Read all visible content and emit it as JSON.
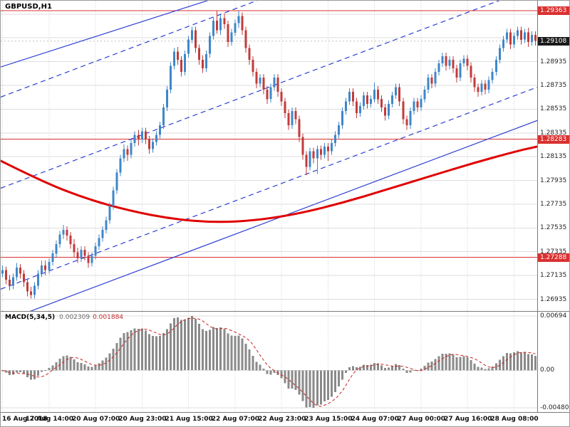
{
  "window": {
    "title": "GBPUSD,H1"
  },
  "colors": {
    "bull": "#3f87c9",
    "bear": "#c23b3b",
    "ma": "#e00000",
    "trend": "#2d3fd3",
    "grid_h": "#dedede",
    "grid_v": "#cfcfcf",
    "hline": "#d93030",
    "badge_current_bg": "#1a1a1a",
    "macd_bar": "#8a8a8a",
    "macd_signal": "#cc2020"
  },
  "chart_data": {
    "type": "candlestick",
    "symbol": "GBPUSD",
    "timeframe": "H1",
    "title": "GBPUSD,H1",
    "price_range": {
      "min": 1.2686,
      "max": 1.294
    },
    "price_grid": {
      "start": 1.26935,
      "step": 0.002,
      "count": 13
    },
    "price_axis_labels": [
      "1.28935",
      "1.28735",
      "1.28535",
      "1.28335",
      "1.28135",
      "1.27935",
      "1.27735",
      "1.27535",
      "1.27335",
      "1.27135",
      "1.26935"
    ],
    "x_labels": [
      "16 Aug 2018",
      "17 Aug 14:00",
      "20 Aug 07:00",
      "20 Aug 23:00",
      "21 Aug 15:00",
      "22 Aug 07:00",
      "22 Aug 23:00",
      "23 Aug 15:00",
      "24 Aug 07:00",
      "27 Aug 00:00",
      "27 Aug 16:00",
      "28 Aug 08:00"
    ],
    "tick_indices": [
      0,
      13,
      26,
      39,
      52,
      65,
      78,
      91,
      104,
      117,
      130,
      143
    ],
    "hlines": [
      {
        "price": 1.29363,
        "label": "1.29363"
      },
      {
        "price": 1.28283,
        "label": "1.28283"
      },
      {
        "price": 1.27288,
        "label": "1.27288"
      }
    ],
    "current_price": {
      "price": 1.29108,
      "label": "1.29108"
    },
    "trendlines": [
      {
        "style": "solid",
        "p1": [
          0,
          1.2889
        ],
        "p2": [
          1,
          1.3034
        ]
      },
      {
        "style": "solid",
        "p1": [
          0,
          1.2674
        ],
        "p2": [
          1,
          1.2844
        ]
      },
      {
        "style": "dashed",
        "p1": [
          0,
          1.28637
        ],
        "p2": [
          1,
          1.30337
        ]
      },
      {
        "style": "dashed",
        "p1": [
          0,
          1.2787
        ],
        "p2": [
          1,
          1.2957
        ]
      },
      {
        "style": "dashed",
        "p1": [
          0,
          1.2702
        ],
        "p2": [
          1,
          1.2872
        ]
      }
    ],
    "ma": {
      "points": [
        [
          0,
          1.281
        ],
        [
          0.08,
          1.2792
        ],
        [
          0.16,
          1.2778
        ],
        [
          0.24,
          1.2768
        ],
        [
          0.32,
          1.2761
        ],
        [
          0.4,
          1.2758
        ],
        [
          0.48,
          1.276
        ],
        [
          0.56,
          1.2766
        ],
        [
          0.64,
          1.2775
        ],
        [
          0.72,
          1.2786
        ],
        [
          0.8,
          1.2797
        ],
        [
          0.88,
          1.2808
        ],
        [
          0.96,
          1.2818
        ],
        [
          1,
          1.2822
        ]
      ]
    },
    "macd": {
      "name": "MACD(5,34,5)",
      "value_main": "0.002309",
      "value_signal": "0.001884",
      "params": [
        5,
        34,
        5
      ],
      "axis_labels": [
        "0.00694",
        "0.00",
        "-0.00480"
      ],
      "axis_values": [
        0.00694,
        0,
        -0.0048
      ],
      "range": {
        "max": 0.00749,
        "min": -0.00535
      }
    },
    "candles": [
      [
        1.2715,
        1.2722,
        1.2712,
        1.2718
      ],
      [
        1.2718,
        1.2721,
        1.2706,
        1.271
      ],
      [
        1.271,
        1.2714,
        1.2701,
        1.2705
      ],
      [
        1.2705,
        1.2715,
        1.2702,
        1.2712
      ],
      [
        1.2712,
        1.2724,
        1.2709,
        1.272
      ],
      [
        1.272,
        1.2723,
        1.2711,
        1.2715
      ],
      [
        1.2715,
        1.2718,
        1.2704,
        1.2708
      ],
      [
        1.2708,
        1.2711,
        1.2696,
        1.27
      ],
      [
        1.27,
        1.2704,
        1.2694,
        1.2697
      ],
      [
        1.2697,
        1.2708,
        1.2694,
        1.2705
      ],
      [
        1.2705,
        1.2718,
        1.2702,
        1.2715
      ],
      [
        1.2715,
        1.2726,
        1.2712,
        1.2722
      ],
      [
        1.2722,
        1.2726,
        1.2714,
        1.2718
      ],
      [
        1.2718,
        1.2728,
        1.2715,
        1.2725
      ],
      [
        1.2725,
        1.2735,
        1.2722,
        1.2732
      ],
      [
        1.2732,
        1.2743,
        1.2729,
        1.274
      ],
      [
        1.274,
        1.2751,
        1.2737,
        1.2748
      ],
      [
        1.2748,
        1.2756,
        1.2744,
        1.2752
      ],
      [
        1.2752,
        1.2755,
        1.2743,
        1.2747
      ],
      [
        1.2747,
        1.275,
        1.2736,
        1.274
      ],
      [
        1.274,
        1.2744,
        1.2729,
        1.2733
      ],
      [
        1.2733,
        1.2737,
        1.2724,
        1.2728
      ],
      [
        1.2728,
        1.2738,
        1.2725,
        1.2735
      ],
      [
        1.2735,
        1.2738,
        1.2726,
        1.273
      ],
      [
        1.273,
        1.2733,
        1.272,
        1.2724
      ],
      [
        1.2724,
        1.2733,
        1.2721,
        1.273
      ],
      [
        1.273,
        1.2741,
        1.2727,
        1.2738
      ],
      [
        1.2738,
        1.2748,
        1.2735,
        1.2745
      ],
      [
        1.2745,
        1.2755,
        1.2742,
        1.2752
      ],
      [
        1.2752,
        1.2763,
        1.2749,
        1.276
      ],
      [
        1.276,
        1.2775,
        1.2757,
        1.2772
      ],
      [
        1.2772,
        1.2788,
        1.2769,
        1.2785
      ],
      [
        1.2785,
        1.2803,
        1.2782,
        1.28
      ],
      [
        1.28,
        1.2815,
        1.2797,
        1.2812
      ],
      [
        1.2812,
        1.2824,
        1.2809,
        1.282
      ],
      [
        1.282,
        1.2823,
        1.281,
        1.2815
      ],
      [
        1.2815,
        1.2828,
        1.2812,
        1.2825
      ],
      [
        1.2825,
        1.2835,
        1.2822,
        1.2832
      ],
      [
        1.2832,
        1.2836,
        1.2823,
        1.2828
      ],
      [
        1.2828,
        1.2838,
        1.2825,
        1.2835
      ],
      [
        1.2835,
        1.2838,
        1.2824,
        1.2828
      ],
      [
        1.2828,
        1.2831,
        1.2816,
        1.282
      ],
      [
        1.282,
        1.2829,
        1.2817,
        1.2826
      ],
      [
        1.2826,
        1.2835,
        1.2823,
        1.2832
      ],
      [
        1.2832,
        1.2843,
        1.2829,
        1.284
      ],
      [
        1.284,
        1.2858,
        1.2837,
        1.2855
      ],
      [
        1.2855,
        1.2873,
        1.2852,
        1.287
      ],
      [
        1.287,
        1.2893,
        1.2867,
        1.289
      ],
      [
        1.289,
        1.2905,
        1.2887,
        1.2902
      ],
      [
        1.2902,
        1.2906,
        1.2891,
        1.2895
      ],
      [
        1.2895,
        1.2898,
        1.2881,
        1.2885
      ],
      [
        1.2885,
        1.2903,
        1.2882,
        1.29
      ],
      [
        1.29,
        1.2915,
        1.2897,
        1.2912
      ],
      [
        1.2912,
        1.2923,
        1.2909,
        1.292
      ],
      [
        1.292,
        1.2923,
        1.2901,
        1.2905
      ],
      [
        1.2905,
        1.2908,
        1.2891,
        1.2895
      ],
      [
        1.2895,
        1.2899,
        1.2884,
        1.2888
      ],
      [
        1.2888,
        1.2903,
        1.2885,
        1.29
      ],
      [
        1.29,
        1.2918,
        1.2897,
        1.2915
      ],
      [
        1.2915,
        1.2931,
        1.2912,
        1.2928
      ],
      [
        1.2928,
        1.2936,
        1.2917,
        1.292
      ],
      [
        1.292,
        1.2933,
        1.2916,
        1.293
      ],
      [
        1.293,
        1.2934,
        1.2921,
        1.2925
      ],
      [
        1.2925,
        1.2928,
        1.2906,
        1.291
      ],
      [
        1.291,
        1.2921,
        1.2907,
        1.2918
      ],
      [
        1.2918,
        1.2929,
        1.2915,
        1.2926
      ],
      [
        1.2926,
        1.2936,
        1.2922,
        1.2932
      ],
      [
        1.2932,
        1.2935,
        1.2916,
        1.292
      ],
      [
        1.292,
        1.2923,
        1.2901,
        1.2905
      ],
      [
        1.2905,
        1.2908,
        1.2891,
        1.2895
      ],
      [
        1.2895,
        1.2898,
        1.2881,
        1.2885
      ],
      [
        1.2885,
        1.2888,
        1.2871,
        1.2875
      ],
      [
        1.2875,
        1.2883,
        1.2872,
        1.288
      ],
      [
        1.288,
        1.2883,
        1.2866,
        1.287
      ],
      [
        1.287,
        1.2873,
        1.2858,
        1.2862
      ],
      [
        1.2862,
        1.2875,
        1.2859,
        1.2872
      ],
      [
        1.2872,
        1.2883,
        1.2869,
        1.288
      ],
      [
        1.288,
        1.2883,
        1.2864,
        1.2868
      ],
      [
        1.2868,
        1.2871,
        1.2856,
        1.286
      ],
      [
        1.286,
        1.2863,
        1.2846,
        1.285
      ],
      [
        1.285,
        1.2853,
        1.2836,
        1.284
      ],
      [
        1.284,
        1.2855,
        1.2837,
        1.2852
      ],
      [
        1.2852,
        1.2855,
        1.2841,
        1.2845
      ],
      [
        1.2845,
        1.2848,
        1.2826,
        1.283
      ],
      [
        1.283,
        1.2833,
        1.2811,
        1.2815
      ],
      [
        1.2815,
        1.2818,
        1.2798,
        1.2805
      ],
      [
        1.2805,
        1.2821,
        1.2802,
        1.2818
      ],
      [
        1.2818,
        1.2821,
        1.2808,
        1.2812
      ],
      [
        1.2812,
        1.2823,
        1.2799,
        1.282
      ],
      [
        1.282,
        1.2823,
        1.2811,
        1.2815
      ],
      [
        1.2815,
        1.2825,
        1.2812,
        1.2822
      ],
      [
        1.2822,
        1.2825,
        1.281,
        1.2818
      ],
      [
        1.2818,
        1.2828,
        1.2815,
        1.2825
      ],
      [
        1.2825,
        1.2835,
        1.2822,
        1.2832
      ],
      [
        1.2832,
        1.2843,
        1.2829,
        1.284
      ],
      [
        1.284,
        1.2855,
        1.2837,
        1.2852
      ],
      [
        1.2852,
        1.2863,
        1.2849,
        1.286
      ],
      [
        1.286,
        1.2871,
        1.2857,
        1.2868
      ],
      [
        1.2868,
        1.2871,
        1.2856,
        1.286
      ],
      [
        1.286,
        1.2863,
        1.2846,
        1.285
      ],
      [
        1.285,
        1.2859,
        1.2847,
        1.2856
      ],
      [
        1.2856,
        1.2868,
        1.2853,
        1.2865
      ],
      [
        1.2865,
        1.2868,
        1.2854,
        1.2858
      ],
      [
        1.2858,
        1.2865,
        1.2855,
        1.2862
      ],
      [
        1.2862,
        1.2876,
        1.2859,
        1.287
      ],
      [
        1.287,
        1.2873,
        1.2858,
        1.2862
      ],
      [
        1.2862,
        1.2865,
        1.2851,
        1.2855
      ],
      [
        1.2855,
        1.2858,
        1.2844,
        1.2848
      ],
      [
        1.2848,
        1.2861,
        1.2845,
        1.2858
      ],
      [
        1.2858,
        1.2868,
        1.2855,
        1.2865
      ],
      [
        1.2865,
        1.2875,
        1.2862,
        1.2872
      ],
      [
        1.2872,
        1.2875,
        1.2856,
        1.286
      ],
      [
        1.286,
        1.2863,
        1.2841,
        1.2845
      ],
      [
        1.2845,
        1.2848,
        1.2836,
        1.284
      ],
      [
        1.284,
        1.2855,
        1.2837,
        1.2852
      ],
      [
        1.2852,
        1.2863,
        1.2849,
        1.286
      ],
      [
        1.286,
        1.2863,
        1.2851,
        1.2855
      ],
      [
        1.2855,
        1.2865,
        1.2852,
        1.2862
      ],
      [
        1.2862,
        1.2873,
        1.2859,
        1.287
      ],
      [
        1.287,
        1.2883,
        1.2867,
        1.288
      ],
      [
        1.288,
        1.2883,
        1.2871,
        1.2875
      ],
      [
        1.2875,
        1.2888,
        1.2872,
        1.2885
      ],
      [
        1.2885,
        1.2895,
        1.2882,
        1.2892
      ],
      [
        1.2892,
        1.2901,
        1.2889,
        1.2898
      ],
      [
        1.2898,
        1.2901,
        1.2886,
        1.289
      ],
      [
        1.289,
        1.2898,
        1.2887,
        1.2895
      ],
      [
        1.2895,
        1.2898,
        1.2884,
        1.2888
      ],
      [
        1.2888,
        1.2891,
        1.2876,
        1.288
      ],
      [
        1.288,
        1.2895,
        1.2877,
        1.2892
      ],
      [
        1.2892,
        1.2899,
        1.2889,
        1.2896
      ],
      [
        1.2896,
        1.2899,
        1.2886,
        1.289
      ],
      [
        1.289,
        1.2893,
        1.2876,
        1.288
      ],
      [
        1.288,
        1.2883,
        1.2868,
        1.2872
      ],
      [
        1.2872,
        1.2875,
        1.2864,
        1.2868
      ],
      [
        1.2868,
        1.2878,
        1.2865,
        1.2875
      ],
      [
        1.2875,
        1.2878,
        1.2866,
        1.287
      ],
      [
        1.287,
        1.2881,
        1.2867,
        1.2878
      ],
      [
        1.2878,
        1.2888,
        1.2875,
        1.2885
      ],
      [
        1.2885,
        1.2898,
        1.2882,
        1.2895
      ],
      [
        1.2895,
        1.2908,
        1.2892,
        1.2905
      ],
      [
        1.2905,
        1.2915,
        1.2902,
        1.2912
      ],
      [
        1.2912,
        1.2921,
        1.2909,
        1.2918
      ],
      [
        1.2918,
        1.2921,
        1.2904,
        1.2908
      ],
      [
        1.2908,
        1.2918,
        1.2905,
        1.2915
      ],
      [
        1.2915,
        1.2923,
        1.2912,
        1.292
      ],
      [
        1.292,
        1.2923,
        1.2908,
        1.2912
      ],
      [
        1.2912,
        1.2921,
        1.2909,
        1.2918
      ],
      [
        1.2918,
        1.2922,
        1.2906,
        1.291
      ],
      [
        1.291,
        1.2919,
        1.2907,
        1.2916
      ],
      [
        1.2916,
        1.2919,
        1.2907,
        1.2911
      ]
    ]
  }
}
